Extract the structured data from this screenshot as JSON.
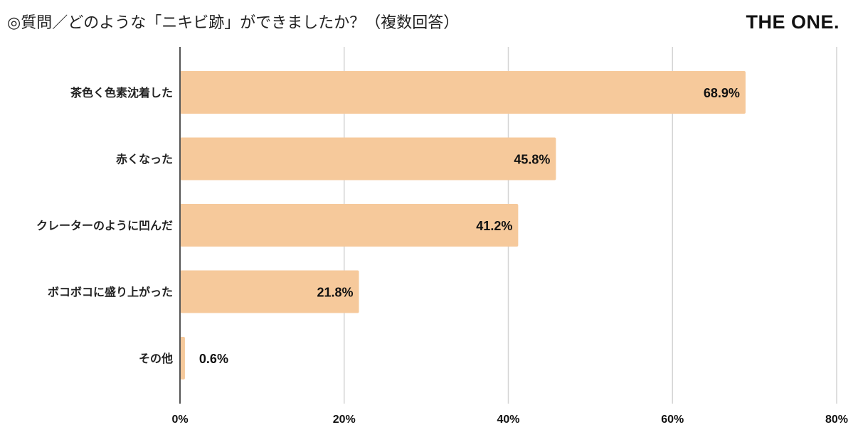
{
  "header": {
    "title": "◎質問／どのような「ニキビ跡」ができましたか？（複数回答）",
    "brand": "THE ONE."
  },
  "colors": {
    "bar": "#f6c99b",
    "grid": "#d4d4d4",
    "axis": "#555555"
  },
  "chart_data": {
    "type": "bar",
    "orientation": "horizontal",
    "title": "◎質問／どのような「ニキビ跡」ができましたか？（複数回答）",
    "categories": [
      "茶色く色素沈着した",
      "赤くなった",
      "クレーターのように凹んだ",
      "ボコボコに盛り上がった",
      "その他"
    ],
    "values": [
      68.9,
      45.8,
      41.2,
      21.8,
      0.6
    ],
    "value_labels": [
      "68.9%",
      "45.8%",
      "41.2%",
      "21.8%",
      "0.6%"
    ],
    "xlim": [
      0,
      80
    ],
    "xticks": [
      0,
      20,
      40,
      60,
      80
    ],
    "xtick_labels": [
      "0%",
      "20%",
      "40%",
      "60%",
      "80%"
    ],
    "grid": true,
    "legend": "none"
  }
}
